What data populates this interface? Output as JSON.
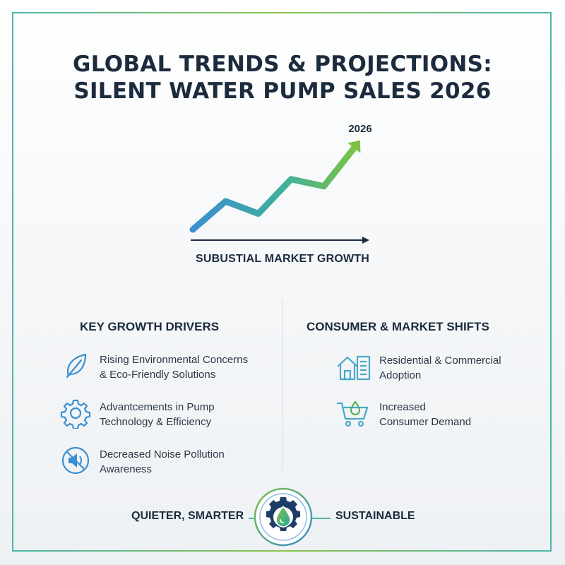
{
  "title": {
    "line1": "GLOBAL TRENDS & PROJECTIONS:",
    "line2": "SILENT WATER PUMP SALES 2026"
  },
  "chart": {
    "year_label": "2026",
    "caption": "SUBUSTIAL MARKET GROWTH"
  },
  "chart_data": {
    "type": "line",
    "title": "",
    "x": [
      0,
      1,
      2,
      3,
      4,
      5
    ],
    "values": [
      0,
      3.2,
      1.8,
      5.7,
      4.9,
      9.6
    ],
    "annotations": [
      "2026"
    ],
    "xlabel": "SUBUSTIAL MARKET GROWTH",
    "ylabel": "",
    "grid": false
  },
  "left_column": {
    "heading": "KEY GROWTH DRIVERS",
    "items": [
      {
        "icon": "leaf-icon",
        "line1": "Rising Environmental Concerns",
        "line2": "& Eco-Friendly Solutions"
      },
      {
        "icon": "gear-icon",
        "line1": "Advantcements in Pump",
        "line2": "Technology & Efficiency"
      },
      {
        "icon": "mute-speaker-icon",
        "line1": "Decreased Noise Pollution",
        "line2": "Awareness"
      }
    ]
  },
  "right_column": {
    "heading": "CONSUMER & MARKET SHIFTS",
    "items": [
      {
        "icon": "house-building-icon",
        "line1": "Residential & Commercial",
        "line2": "Adoption"
      },
      {
        "icon": "shopping-cart-icon",
        "line1": "Increased",
        "line2": "Consumer Demand"
      }
    ]
  },
  "footer": {
    "left": "QUIETER, SMARTER",
    "right": "SUSTAINABLE",
    "emblem_icon": "water-drop-gear-icon"
  },
  "colors": {
    "navy": "#1c2b3e",
    "blue": "#3a8fd0",
    "teal": "#4db6ac",
    "green": "#7cc242",
    "border": "#6fbfb0"
  }
}
